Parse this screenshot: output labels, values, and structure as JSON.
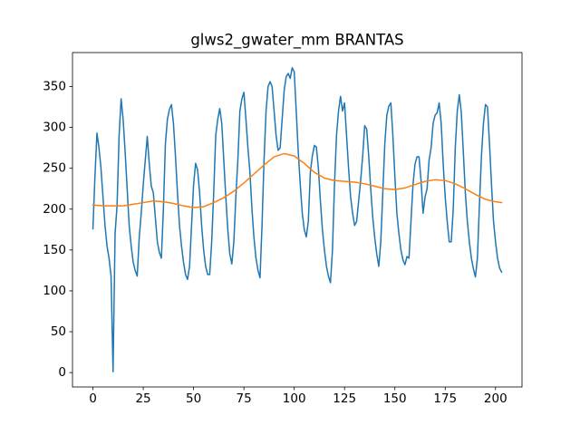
{
  "chart_data": {
    "type": "line",
    "title": "glws2_gwater_mm BRANTAS",
    "xlim": [
      -10.15,
      213.15
    ],
    "xticks": [
      0,
      25,
      50,
      75,
      100,
      125,
      150,
      175,
      200
    ],
    "ylim": [
      -17.6,
      391.6
    ],
    "yticks": [
      0,
      50,
      100,
      150,
      200,
      250,
      300,
      350
    ],
    "grid": false,
    "series": [
      {
        "color": "#1f77b4",
        "x": [
          0,
          1,
          2,
          3,
          4,
          5,
          6,
          7,
          8,
          9,
          10,
          11,
          12,
          13,
          14,
          15,
          16,
          17,
          18,
          19,
          20,
          21,
          22,
          23,
          24,
          25,
          26,
          27,
          28,
          29,
          30,
          31,
          32,
          33,
          34,
          35,
          36,
          37,
          38,
          39,
          40,
          41,
          42,
          43,
          44,
          45,
          46,
          47,
          48,
          49,
          50,
          51,
          52,
          53,
          54,
          55,
          56,
          57,
          58,
          59,
          60,
          61,
          62,
          63,
          64,
          65,
          66,
          67,
          68,
          69,
          70,
          71,
          72,
          73,
          74,
          75,
          76,
          77,
          78,
          79,
          80,
          81,
          82,
          83,
          84,
          85,
          86,
          87,
          88,
          89,
          90,
          91,
          92,
          93,
          94,
          95,
          96,
          97,
          98,
          99,
          100,
          101,
          102,
          103,
          104,
          105,
          106,
          107,
          108,
          109,
          110,
          111,
          112,
          113,
          114,
          115,
          116,
          117,
          118,
          119,
          120,
          121,
          122,
          123,
          124,
          125,
          126,
          127,
          128,
          129,
          130,
          131,
          132,
          133,
          134,
          135,
          136,
          137,
          138,
          139,
          140,
          141,
          142,
          143,
          144,
          145,
          146,
          147,
          148,
          149,
          150,
          151,
          152,
          153,
          154,
          155,
          156,
          157,
          158,
          159,
          160,
          161,
          162,
          163,
          164,
          165,
          166,
          167,
          168,
          169,
          170,
          171,
          172,
          173,
          174,
          175,
          176,
          177,
          178,
          179,
          180,
          181,
          182,
          183,
          184,
          185,
          186,
          187,
          188,
          189,
          190,
          191,
          192,
          193,
          194,
          195,
          196,
          197,
          198,
          199,
          200,
          201,
          202,
          203
        ],
        "values": [
          176,
          240,
          293,
          275,
          250,
          215,
          180,
          155,
          140,
          118,
          1,
          170,
          205,
          290,
          335,
          310,
          270,
          225,
          180,
          155,
          135,
          125,
          118,
          165,
          195,
          230,
          260,
          289,
          255,
          228,
          220,
          190,
          160,
          147,
          140,
          200,
          280,
          310,
          322,
          328,
          305,
          265,
          220,
          180,
          155,
          135,
          120,
          114,
          130,
          180,
          230,
          256,
          248,
          220,
          180,
          150,
          130,
          120,
          120,
          160,
          220,
          290,
          310,
          323,
          305,
          260,
          215,
          175,
          145,
          133,
          160,
          215,
          260,
          320,
          335,
          343,
          310,
          275,
          245,
          200,
          165,
          140,
          125,
          116,
          180,
          260,
          320,
          350,
          356,
          350,
          320,
          290,
          272,
          275,
          310,
          345,
          362,
          366,
          360,
          373,
          368,
          320,
          270,
          230,
          195,
          175,
          166,
          185,
          245,
          265,
          278,
          276,
          250,
          210,
          175,
          150,
          130,
          118,
          110,
          150,
          230,
          290,
          320,
          338,
          320,
          330,
          290,
          250,
          215,
          195,
          180,
          185,
          210,
          235,
          265,
          302,
          298,
          265,
          225,
          190,
          165,
          145,
          130,
          160,
          220,
          280,
          315,
          326,
          330,
          290,
          240,
          195,
          170,
          150,
          138,
          132,
          142,
          140,
          185,
          230,
          255,
          264,
          264,
          235,
          195,
          215,
          225,
          260,
          275,
          305,
          315,
          318,
          330,
          305,
          255,
          215,
          185,
          160,
          160,
          200,
          275,
          320,
          340,
          318,
          270,
          220,
          185,
          160,
          140,
          127,
          117,
          140,
          205,
          265,
          305,
          328,
          325,
          280,
          230,
          185,
          160,
          140,
          128,
          123
        ]
      },
      {
        "color": "#ff7f0e",
        "x": [
          0,
          5,
          10,
          15,
          20,
          25,
          30,
          35,
          40,
          45,
          50,
          55,
          60,
          65,
          70,
          75,
          80,
          85,
          90,
          95,
          100,
          105,
          110,
          115,
          120,
          125,
          130,
          135,
          140,
          145,
          150,
          155,
          160,
          165,
          170,
          175,
          180,
          185,
          190,
          195,
          200,
          203
        ],
        "values": [
          205,
          204,
          204,
          204,
          206,
          208,
          210,
          209,
          207,
          204,
          202,
          203,
          208,
          214,
          222,
          232,
          243,
          254,
          264,
          268,
          265,
          256,
          245,
          238,
          235,
          234,
          233,
          231,
          228,
          225,
          224,
          226,
          230,
          234,
          236,
          235,
          231,
          225,
          218,
          212,
          209,
          208
        ]
      }
    ]
  }
}
